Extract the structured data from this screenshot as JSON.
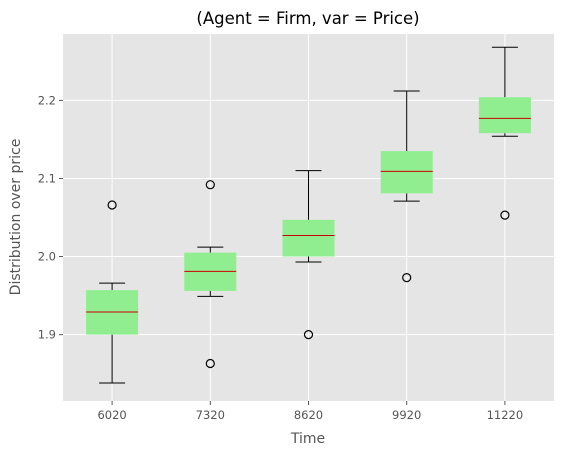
{
  "chart_data": {
    "type": "box",
    "title": "(Agent = Firm, var = Price)",
    "xlabel": "Time",
    "ylabel": "Distribution over price",
    "categories": [
      "6020",
      "7320",
      "8620",
      "9920",
      "11220"
    ],
    "ylim": [
      1.815,
      2.285
    ],
    "yticks": [
      1.9,
      2.0,
      2.1,
      2.2
    ],
    "ytick_labels": [
      "1.9",
      "2.0",
      "2.1",
      "2.2"
    ],
    "grid": true,
    "colors": {
      "plot_background": "#e5e5e5",
      "grid": "#ffffff",
      "box_fill": "#90ee90",
      "median": "#cc0000",
      "whisker": "#000000"
    },
    "boxes": [
      {
        "category": "6020",
        "whisker_low": 1.838,
        "q1": 1.9,
        "median": 1.929,
        "q3": 1.957,
        "whisker_high": 1.966,
        "fliers": [
          2.066
        ]
      },
      {
        "category": "7320",
        "whisker_low": 1.949,
        "q1": 1.956,
        "median": 1.981,
        "q3": 2.005,
        "whisker_high": 2.012,
        "fliers": [
          2.092,
          1.863
        ]
      },
      {
        "category": "8620",
        "whisker_low": 1.993,
        "q1": 2.0,
        "median": 2.027,
        "q3": 2.047,
        "whisker_high": 2.11,
        "fliers": [
          1.9
        ]
      },
      {
        "category": "9920",
        "whisker_low": 2.071,
        "q1": 2.081,
        "median": 2.109,
        "q3": 2.135,
        "whisker_high": 2.212,
        "fliers": [
          1.973
        ]
      },
      {
        "category": "11220",
        "whisker_low": 2.154,
        "q1": 2.158,
        "median": 2.177,
        "q3": 2.204,
        "whisker_high": 2.268,
        "fliers": [
          2.053
        ]
      }
    ]
  }
}
